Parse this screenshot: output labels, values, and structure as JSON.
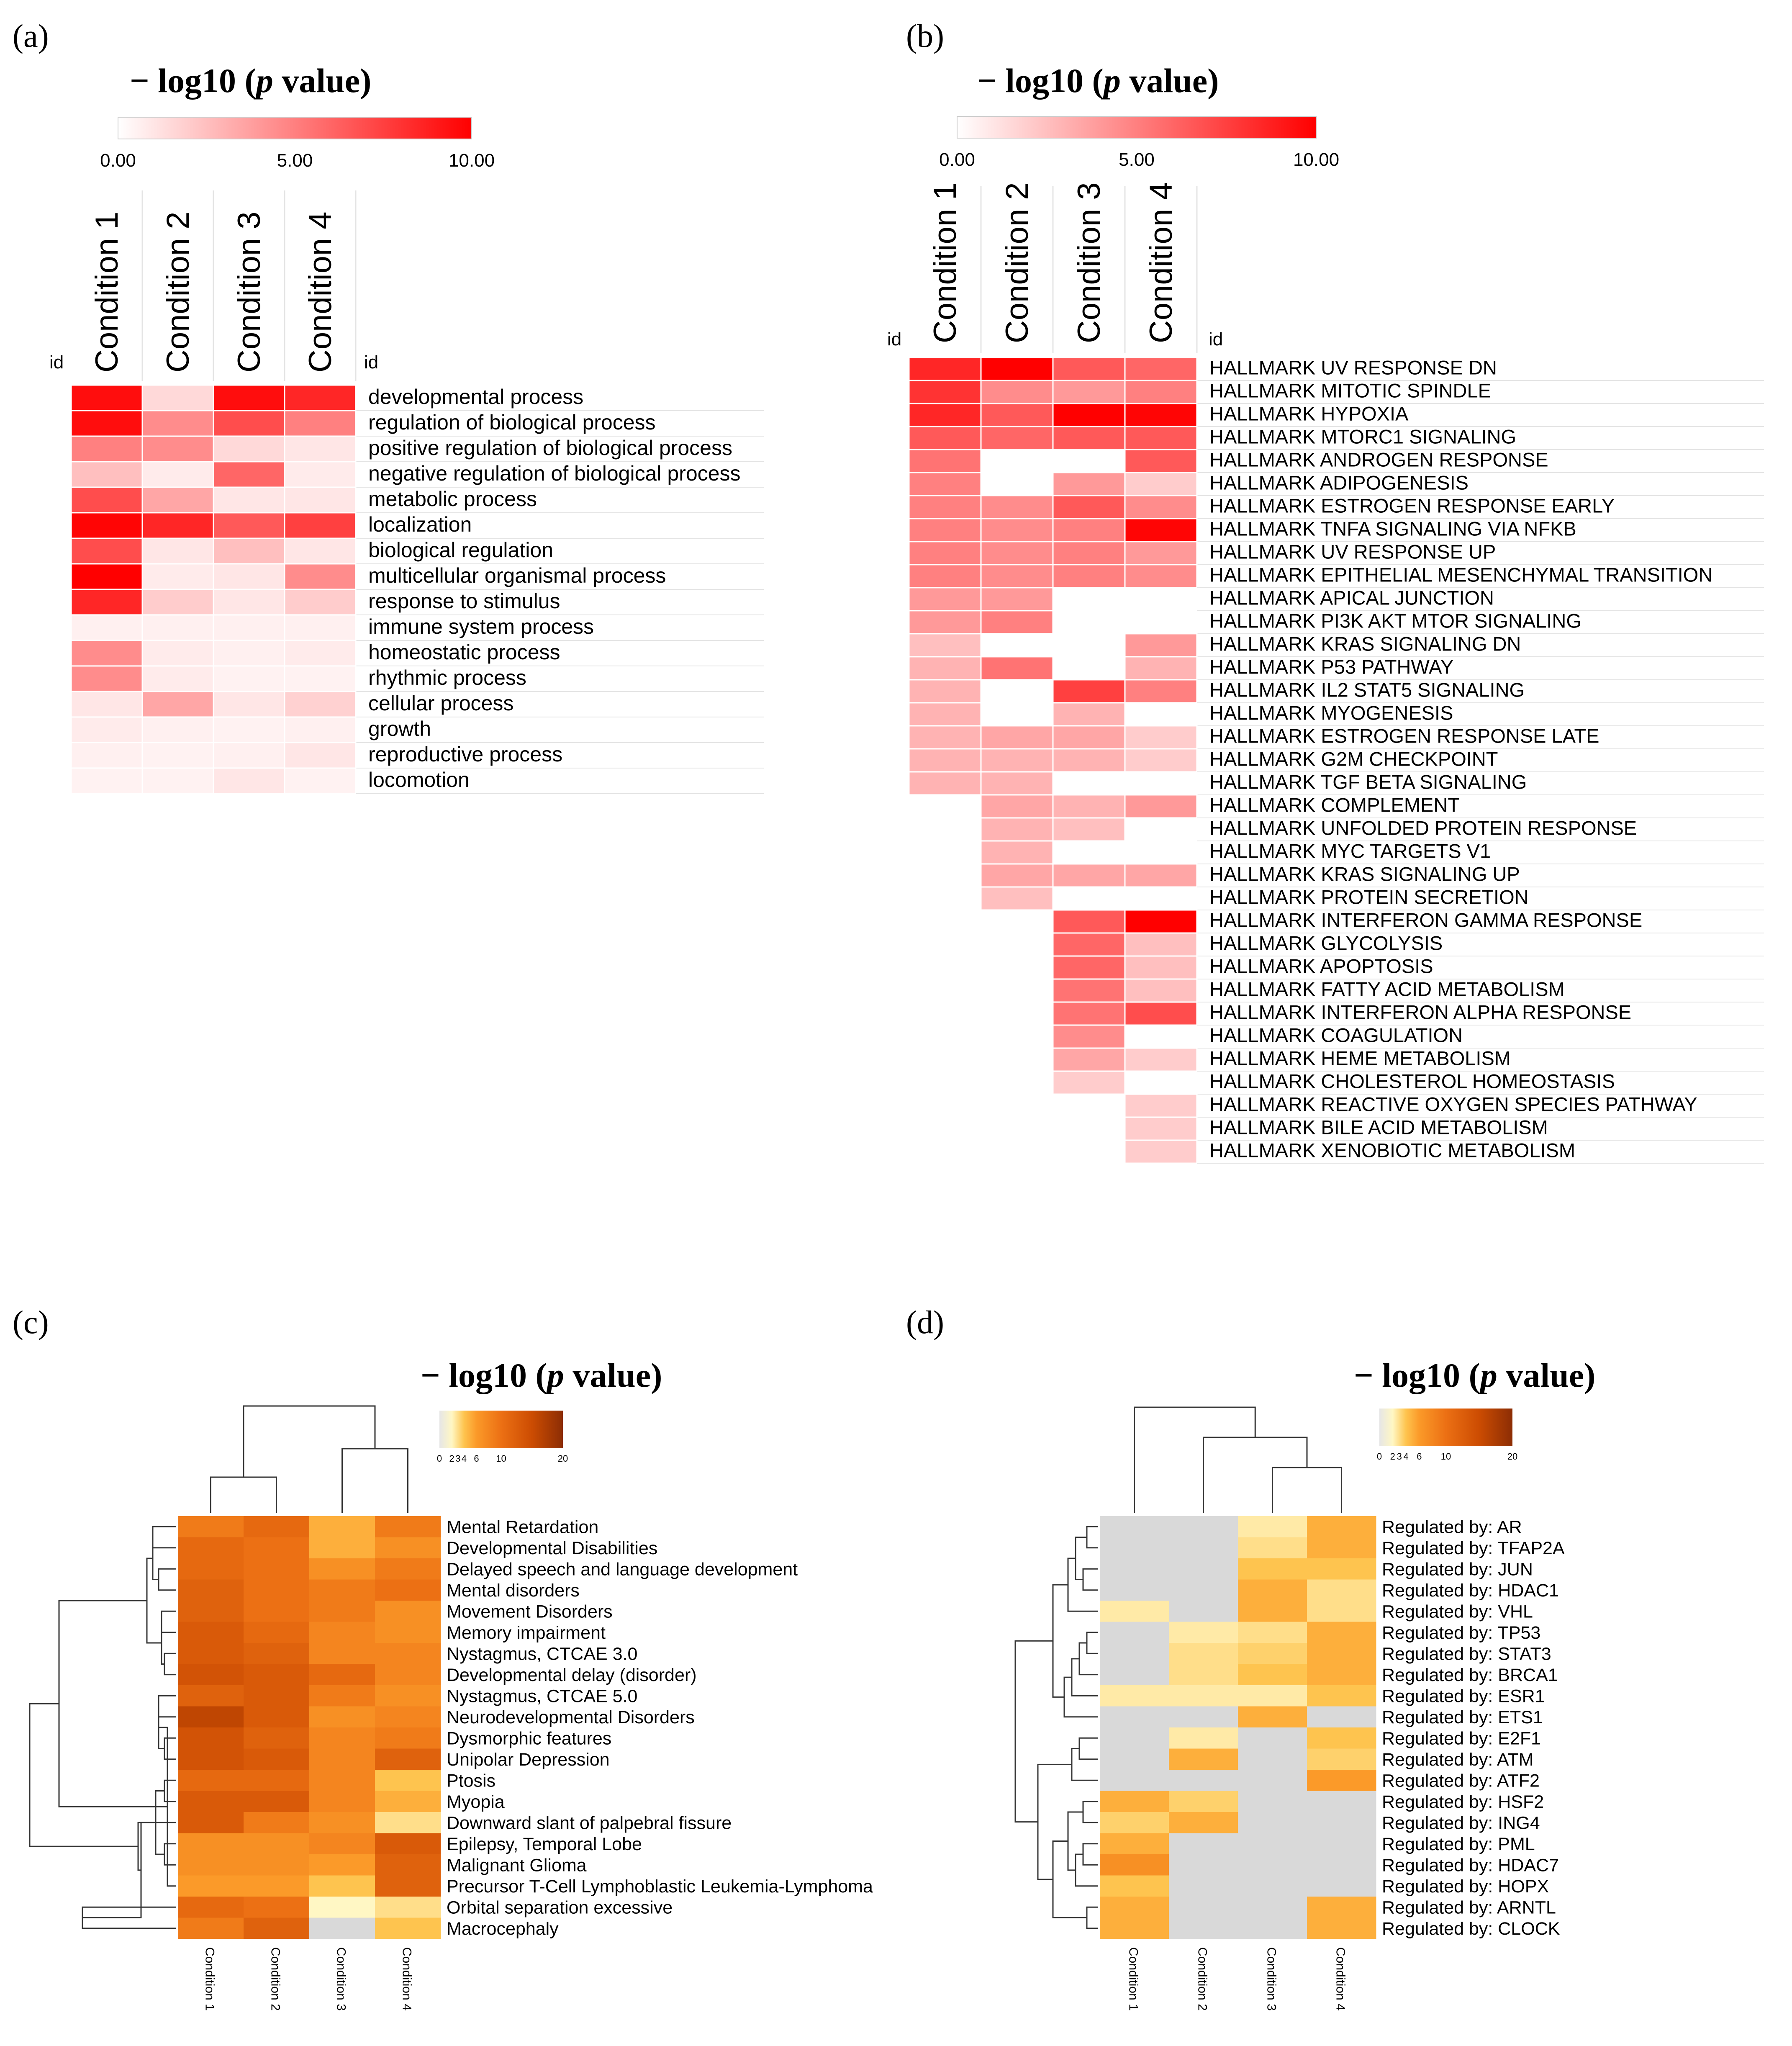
{
  "figure": {
    "panel_labels": [
      "(a)",
      "(b)",
      "(c)",
      "(d)"
    ],
    "legend_title_prefix": "− log10 (",
    "legend_title_italic": "p",
    "legend_title_suffix": " value)",
    "colors": {
      "red_scale_max": "#ff0000",
      "grid": "#e4e4e4",
      "na": "#d9d9d9"
    }
  },
  "chart_data": [
    {
      "panel": "(a)",
      "type": "heatmap",
      "title": "− log10 (p value)",
      "scale_ticks": [
        "0.00",
        "5.00",
        "10.00"
      ],
      "scale_range": [
        0,
        10
      ],
      "id_label": "id",
      "columns": [
        "Condition 1",
        "Condition 2",
        "Condition 3",
        "Condition 4"
      ],
      "rows": [
        "developmental process",
        "regulation of biological process",
        "positive regulation of biological process",
        "negative regulation of biological process",
        "metabolic process",
        "localization",
        "biological regulation",
        "multicellular organismal process",
        "response to stimulus",
        "immune system process",
        "homeostatic process",
        "rhythmic process",
        "cellular process",
        "growth",
        "reproductive process",
        "locomotion"
      ],
      "values": [
        [
          9.5,
          1.5,
          9.5,
          8.5
        ],
        [
          9.5,
          4.5,
          7.0,
          5.0
        ],
        [
          5.0,
          4.5,
          1.5,
          1.0
        ],
        [
          2.5,
          0.8,
          6.0,
          0.8
        ],
        [
          7.0,
          3.5,
          1.0,
          1.0
        ],
        [
          9.8,
          8.5,
          6.5,
          7.5
        ],
        [
          7.0,
          1.0,
          2.5,
          1.0
        ],
        [
          10.0,
          0.8,
          1.0,
          4.5
        ],
        [
          8.5,
          2.0,
          1.0,
          2.0
        ],
        [
          0.6,
          0.6,
          0.6,
          0.6
        ],
        [
          4.5,
          0.8,
          0.6,
          0.8
        ],
        [
          4.5,
          0.8,
          0.5,
          0.5
        ],
        [
          1.0,
          3.5,
          1.0,
          1.8
        ],
        [
          0.8,
          0.6,
          0.5,
          0.6
        ],
        [
          0.6,
          0.5,
          0.6,
          1.0
        ],
        [
          0.5,
          0.5,
          1.0,
          0.5
        ]
      ]
    },
    {
      "panel": "(b)",
      "type": "heatmap",
      "title": "− log10 (p value)",
      "scale_ticks": [
        "0.00",
        "5.00",
        "10.00"
      ],
      "scale_range": [
        0,
        10
      ],
      "id_label": "id",
      "columns": [
        "Condition 1",
        "Condition 2",
        "Condition 3",
        "Condition 4"
      ],
      "rows": [
        "HALLMARK UV RESPONSE DN",
        "HALLMARK MITOTIC SPINDLE",
        "HALLMARK HYPOXIA",
        "HALLMARK MTORC1 SIGNALING",
        "HALLMARK ANDROGEN RESPONSE",
        "HALLMARK ADIPOGENESIS",
        "HALLMARK ESTROGEN RESPONSE EARLY",
        "HALLMARK TNFA SIGNALING VIA NFKB",
        "HALLMARK UV RESPONSE UP",
        "HALLMARK EPITHELIAL MESENCHYMAL TRANSITION",
        "HALLMARK APICAL JUNCTION",
        "HALLMARK PI3K AKT MTOR SIGNALING",
        "HALLMARK KRAS SIGNALING DN",
        "HALLMARK P53 PATHWAY",
        "HALLMARK IL2 STAT5 SIGNALING",
        "HALLMARK MYOGENESIS",
        "HALLMARK ESTROGEN RESPONSE LATE",
        "HALLMARK G2M CHECKPOINT",
        "HALLMARK TGF BETA SIGNALING",
        "HALLMARK COMPLEMENT",
        "HALLMARK UNFOLDED PROTEIN RESPONSE",
        "HALLMARK MYC TARGETS V1",
        "HALLMARK KRAS SIGNALING UP",
        "HALLMARK PROTEIN SECRETION",
        "HALLMARK INTERFERON GAMMA RESPONSE",
        "HALLMARK GLYCOLYSIS",
        "HALLMARK APOPTOSIS",
        "HALLMARK FATTY ACID METABOLISM",
        "HALLMARK INTERFERON ALPHA RESPONSE",
        "HALLMARK COAGULATION",
        "HALLMARK HEME METABOLISM",
        "HALLMARK CHOLESTEROL HOMEOSTASIS",
        "HALLMARK REACTIVE OXYGEN SPECIES PATHWAY",
        "HALLMARK BILE ACID METABOLISM",
        "HALLMARK XENOBIOTIC METABOLISM"
      ],
      "values": [
        [
          8.5,
          10.0,
          6.5,
          6.0
        ],
        [
          8.0,
          4.5,
          4.0,
          5.0
        ],
        [
          8.5,
          6.5,
          10.0,
          9.8
        ],
        [
          6.5,
          6.0,
          6.5,
          6.5
        ],
        [
          5.5,
          null,
          null,
          6.5
        ],
        [
          5.0,
          null,
          4.0,
          2.0
        ],
        [
          5.0,
          4.5,
          6.5,
          4.5
        ],
        [
          5.0,
          4.5,
          5.0,
          9.8
        ],
        [
          5.0,
          4.5,
          5.0,
          4.0
        ],
        [
          5.0,
          4.5,
          5.0,
          4.5
        ],
        [
          4.0,
          4.0,
          null,
          null
        ],
        [
          4.0,
          5.0,
          null,
          null
        ],
        [
          2.5,
          null,
          null,
          4.0
        ],
        [
          3.0,
          5.5,
          null,
          3.0
        ],
        [
          3.0,
          null,
          7.5,
          5.0
        ],
        [
          3.0,
          null,
          3.0,
          null
        ],
        [
          3.0,
          3.5,
          3.5,
          2.0
        ],
        [
          3.0,
          3.0,
          3.0,
          2.0
        ],
        [
          3.0,
          3.0,
          null,
          null
        ],
        [
          null,
          3.5,
          3.0,
          4.0
        ],
        [
          null,
          3.0,
          2.5,
          null
        ],
        [
          null,
          3.0,
          null,
          null
        ],
        [
          null,
          3.5,
          3.5,
          3.5
        ],
        [
          null,
          2.5,
          null,
          null
        ],
        [
          null,
          null,
          6.5,
          10.0
        ],
        [
          null,
          null,
          6.0,
          2.5
        ],
        [
          null,
          null,
          6.0,
          2.5
        ],
        [
          null,
          null,
          5.5,
          2.5
        ],
        [
          null,
          null,
          5.5,
          7.0
        ],
        [
          null,
          null,
          4.5,
          null
        ],
        [
          null,
          null,
          3.5,
          2.0
        ],
        [
          null,
          null,
          2.0,
          null
        ],
        [
          null,
          null,
          null,
          2.0
        ],
        [
          null,
          null,
          null,
          2.0
        ],
        [
          null,
          null,
          null,
          2.0
        ]
      ]
    },
    {
      "panel": "(c)",
      "type": "heatmap",
      "title": "− log10 (p value)",
      "scale_ticks": [
        "0",
        "2",
        "3",
        "4",
        "6",
        "10",
        "20"
      ],
      "scale_range": [
        0,
        20
      ],
      "columns": [
        "Condition 1",
        "Condition 2",
        "Condition 3",
        "Condition 4"
      ],
      "rows": [
        "Mental Retardation",
        "Developmental Disabilities",
        "Delayed speech and language development",
        "Mental disorders",
        "Movement Disorders",
        "Memory impairment",
        "Nystagmus, CTCAE 3.0",
        "Developmental delay (disorder)",
        "Nystagmus, CTCAE 5.0",
        "Neurodevelopmental Disorders",
        "Dysmorphic features",
        "Unipolar Depression",
        "Ptosis",
        "Myopia",
        "Downward slant of palpebral fissure",
        "Epilepsy, Temporal Lobe",
        "Malignant Glioma",
        "Precursor T-Cell Lymphoblastic Leukemia-Lymphoma",
        "Orbital separation excessive",
        "Macrocephaly"
      ],
      "values": [
        [
          9,
          11,
          5,
          9
        ],
        [
          11,
          10,
          5,
          7
        ],
        [
          11,
          10,
          7,
          9
        ],
        [
          12,
          10,
          9,
          10
        ],
        [
          12,
          10,
          9,
          7
        ],
        [
          13,
          11,
          8,
          7
        ],
        [
          13,
          12,
          8,
          8
        ],
        [
          14,
          13,
          11,
          8
        ],
        [
          12,
          13,
          9,
          7
        ],
        [
          16,
          13,
          7,
          8
        ],
        [
          14,
          12,
          8,
          9
        ],
        [
          14,
          13,
          8,
          12
        ],
        [
          11,
          11,
          8,
          4
        ],
        [
          13,
          13,
          8,
          5
        ],
        [
          13,
          9,
          7,
          3
        ],
        [
          7,
          7,
          8,
          13
        ],
        [
          7,
          7,
          6,
          12
        ],
        [
          6,
          6,
          4,
          12
        ],
        [
          11,
          10,
          2,
          3
        ],
        [
          9,
          12,
          null,
          4
        ]
      ],
      "dendrogram": "rows and columns clustered"
    },
    {
      "panel": "(d)",
      "type": "heatmap",
      "title": "− log10 (p value)",
      "scale_ticks": [
        "0",
        "2",
        "3",
        "4",
        "6",
        "10",
        "20"
      ],
      "scale_range": [
        0,
        20
      ],
      "columns": [
        "Condition 1",
        "Condition 2",
        "Condition 3",
        "Condition 4"
      ],
      "rows": [
        "Regulated by: AR",
        "Regulated by: TFAP2A",
        "Regulated by: JUN",
        "Regulated by: HDAC1",
        "Regulated by: VHL",
        "Regulated by: TP53",
        "Regulated by: STAT3",
        "Regulated by: BRCA1",
        "Regulated by: ESR1",
        "Regulated by: ETS1",
        "Regulated by: E2F1",
        "Regulated by: ATM",
        "Regulated by: ATF2",
        "Regulated by: HSF2",
        "Regulated by: ING4",
        "Regulated by: PML",
        "Regulated by: HDAC7",
        "Regulated by: HOPX",
        "Regulated by: ARNTL",
        "Regulated by: CLOCK"
      ],
      "values": [
        [
          null,
          null,
          2.5,
          5
        ],
        [
          null,
          null,
          3,
          5
        ],
        [
          null,
          null,
          4,
          4
        ],
        [
          null,
          null,
          5,
          3
        ],
        [
          2.5,
          null,
          5,
          3
        ],
        [
          null,
          2.5,
          3,
          5
        ],
        [
          null,
          3,
          3.5,
          5
        ],
        [
          null,
          3,
          4,
          5
        ],
        [
          2.5,
          2.5,
          2.5,
          4
        ],
        [
          null,
          null,
          5,
          null
        ],
        [
          null,
          2.5,
          null,
          4
        ],
        [
          null,
          5,
          null,
          3.5
        ],
        [
          null,
          null,
          null,
          6
        ],
        [
          5,
          3.5,
          null,
          null
        ],
        [
          3.5,
          5,
          null,
          null
        ],
        [
          5,
          null,
          null,
          null
        ],
        [
          7,
          null,
          null,
          null
        ],
        [
          4,
          null,
          null,
          null
        ],
        [
          5,
          null,
          null,
          5
        ],
        [
          5,
          null,
          null,
          5
        ]
      ],
      "dendrogram": "rows and columns clustered"
    }
  ]
}
